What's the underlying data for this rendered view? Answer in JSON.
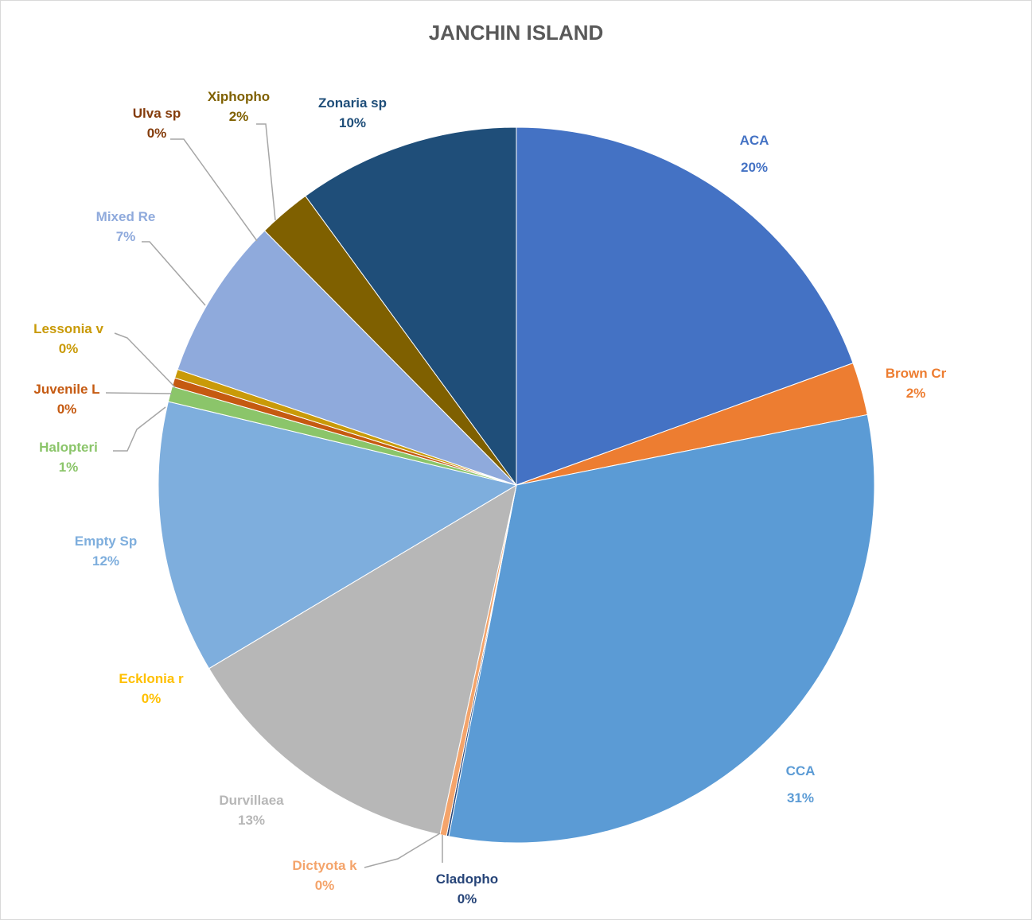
{
  "chart_data": {
    "type": "pie",
    "title": "JANCHIN ISLAND",
    "slices": [
      {
        "name": "ACA",
        "value": 19.6,
        "label": "20%",
        "color": "#4472C4"
      },
      {
        "name": "Brown Cr",
        "value": 2.4,
        "label": "2%",
        "color": "#ED7D31"
      },
      {
        "name": "CCA",
        "value": 31.4,
        "label": "31%",
        "color": "#5B9BD5"
      },
      {
        "name": "Cladopho",
        "value": 0.1,
        "label": "0%",
        "color": "#264478"
      },
      {
        "name": "Dictyota k",
        "value": 0.3,
        "label": "0%",
        "color": "#F4A46B"
      },
      {
        "name": "Durvillaea",
        "value": 13.1,
        "label": "13%",
        "color": "#B7B7B7"
      },
      {
        "name": "Ecklonia r",
        "value": 0.0,
        "label": "0%",
        "color": "#FFC000"
      },
      {
        "name": "Empty Sp",
        "value": 12.4,
        "label": "12%",
        "color": "#7EAEDD"
      },
      {
        "name": "Halopteri",
        "value": 0.7,
        "label": "1%",
        "color": "#8BC56A"
      },
      {
        "name": "Juvenile L",
        "value": 0.4,
        "label": "0%",
        "color": "#C55A11"
      },
      {
        "name": "Lessonia v",
        "value": 0.4,
        "label": "0%",
        "color": "#C99A08"
      },
      {
        "name": "Mixed Re",
        "value": 7.4,
        "label": "7%",
        "color": "#8FAADC"
      },
      {
        "name": "Ulva sp",
        "value": 0.0,
        "label": "0%",
        "color": "#843C0C"
      },
      {
        "name": "Xiphopho",
        "value": 2.4,
        "label": "2%",
        "color": "#7F6000"
      },
      {
        "name": "Zonaria sp",
        "value": 10.1,
        "label": "10%",
        "color": "#1F4E79"
      }
    ]
  }
}
